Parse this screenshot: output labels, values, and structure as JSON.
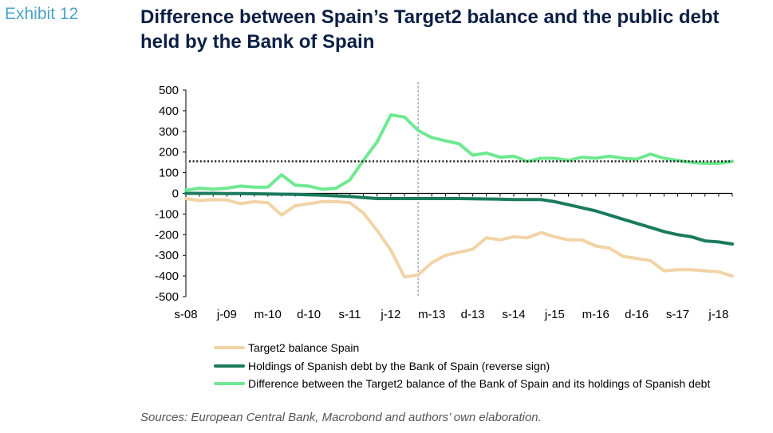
{
  "exhibit_label": "Exhibit 12",
  "title": "Difference between Spain’s Target2 balance and the public debt held by the Bank of Spain",
  "source": "Sources: European Central Bank, Macrobond and authors’ own elaboration.",
  "chart_data": {
    "type": "line",
    "title": "Difference between Spain’s Target2 balance and the public debt held by the Bank of Spain",
    "xlabel": "",
    "ylabel": "",
    "ylim": [
      -500,
      500
    ],
    "yticks": [
      500,
      400,
      300,
      200,
      100,
      0,
      -100,
      -200,
      -300,
      -400,
      -500
    ],
    "x_tick_labels": [
      "s-08",
      "j-09",
      "m-10",
      "d-10",
      "s-11",
      "j-12",
      "m-13",
      "d-13",
      "s-14",
      "j-15",
      "m-16",
      "d-16",
      "s-17",
      "j-18"
    ],
    "vertical_marker_at_index": 17,
    "reference_line_value": 155,
    "legend_position": "bottom",
    "grid": false,
    "series": [
      {
        "name": "Target2 balance Spain",
        "color": "#f2d3a6",
        "values": [
          -25,
          -35,
          -30,
          -32,
          -50,
          -40,
          -45,
          -105,
          -60,
          -50,
          -40,
          -40,
          -45,
          -95,
          -180,
          -275,
          -405,
          -395,
          -335,
          -300,
          -285,
          -270,
          -215,
          -225,
          -210,
          -215,
          -190,
          -210,
          -225,
          -225,
          -255,
          -265,
          -305,
          -315,
          -325,
          -375,
          -370,
          -370,
          -375,
          -380,
          -400
        ]
      },
      {
        "name": "Holdings of Spanish debt by the Bank of Spain (reverse sign)",
        "color": "#1a7a5e",
        "values": [
          0,
          0,
          0,
          -1,
          -1,
          -2,
          -3,
          -4,
          -5,
          -7,
          -9,
          -12,
          -15,
          -20,
          -25,
          -25,
          -25,
          -25,
          -25,
          -25,
          -25,
          -26,
          -27,
          -28,
          -30,
          -30,
          -30,
          -40,
          -55,
          -70,
          -85,
          -105,
          -125,
          -145,
          -165,
          -185,
          -200,
          -210,
          -230,
          -235,
          -245
        ]
      },
      {
        "name": "Difference between the Target2 balance of the Bank of Spain and its holdings of Spanish debt",
        "color": "#6fe890",
        "values": [
          15,
          25,
          20,
          25,
          35,
          30,
          30,
          90,
          40,
          35,
          20,
          25,
          65,
          160,
          250,
          380,
          370,
          305,
          270,
          255,
          240,
          185,
          195,
          175,
          180,
          155,
          170,
          170,
          160,
          175,
          170,
          180,
          170,
          165,
          190,
          170,
          160,
          150,
          145,
          145,
          155
        ]
      }
    ]
  }
}
